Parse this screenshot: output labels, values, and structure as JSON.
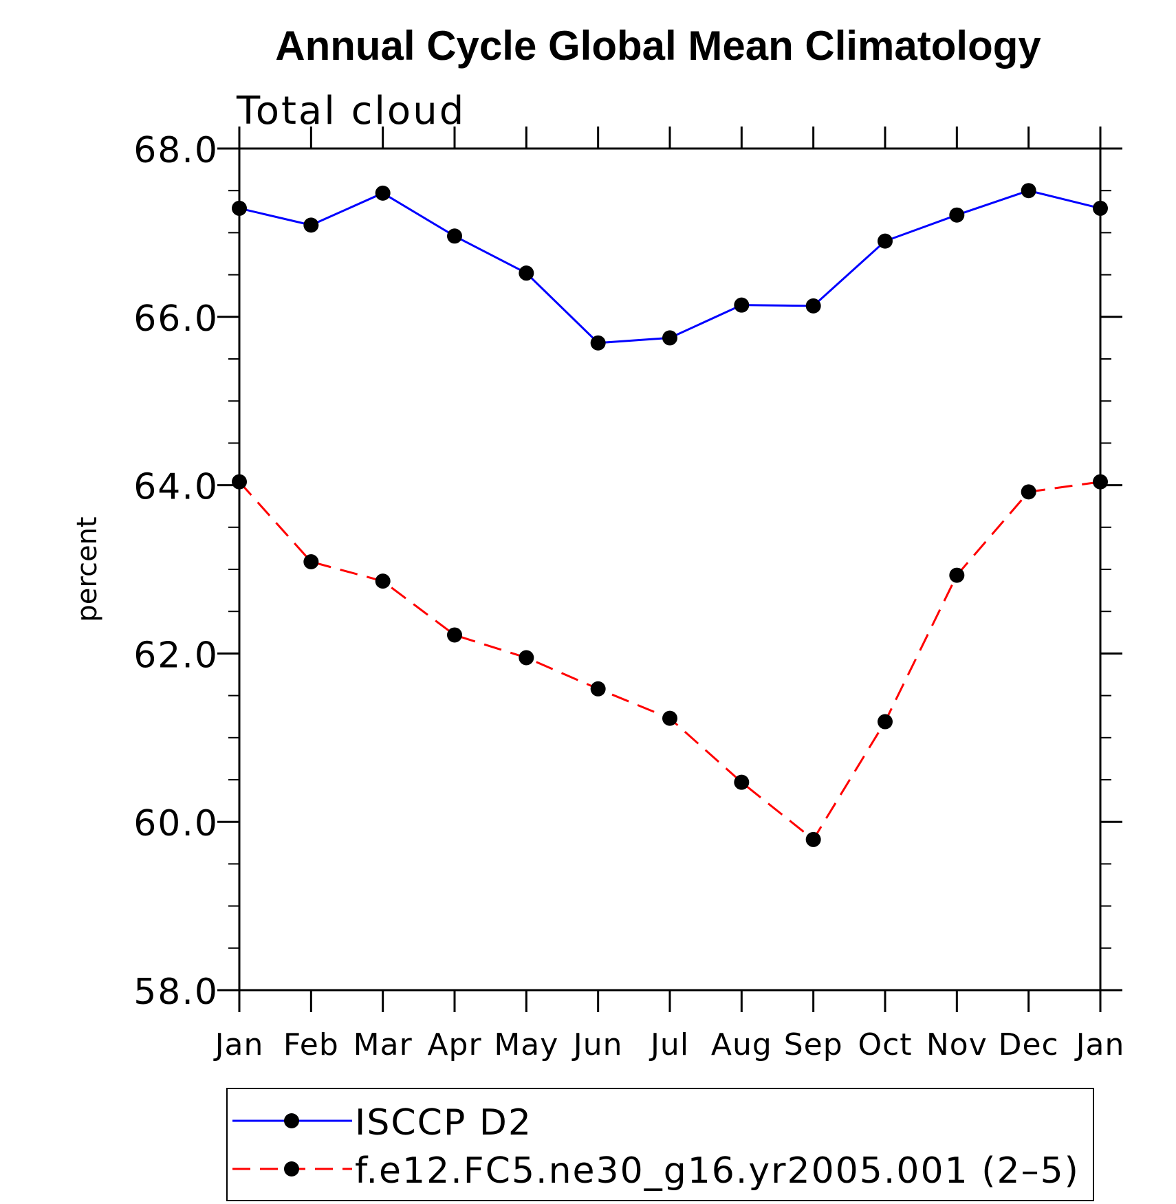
{
  "chart_data": {
    "type": "line",
    "title": "Annual Cycle Global Mean Climatology",
    "subtitle": "Total cloud",
    "xlabel": "",
    "ylabel": "percent",
    "categories": [
      "Jan",
      "Feb",
      "Mar",
      "Apr",
      "May",
      "Jun",
      "Jul",
      "Aug",
      "Sep",
      "Oct",
      "Nov",
      "Dec",
      "Jan"
    ],
    "ylim": [
      58.0,
      68.0
    ],
    "yticks": [
      "68.0",
      "66.0",
      "64.0",
      "62.0",
      "60.0",
      "58.0"
    ],
    "ytick_values": [
      68.0,
      66.0,
      64.0,
      62.0,
      60.0,
      58.0
    ],
    "y_minor_step": 0.5,
    "grid": false,
    "legend_position": "bottom",
    "series": [
      {
        "name": "ISCCP D2",
        "color": "#0000ff",
        "dash": "solid",
        "marker": "filled-circle",
        "values": [
          67.29,
          67.09,
          67.47,
          66.96,
          66.52,
          65.69,
          65.75,
          66.14,
          66.13,
          66.9,
          67.21,
          67.5,
          67.29
        ]
      },
      {
        "name": "f.e12.FC5.ne30_g16.yr2005.001 (2–5)",
        "color": "#ff0000",
        "dash": "dashed",
        "marker": "filled-circle",
        "values": [
          64.04,
          63.09,
          62.86,
          62.22,
          61.95,
          61.58,
          61.23,
          60.47,
          59.79,
          61.19,
          62.93,
          63.92,
          64.04
        ]
      }
    ]
  }
}
